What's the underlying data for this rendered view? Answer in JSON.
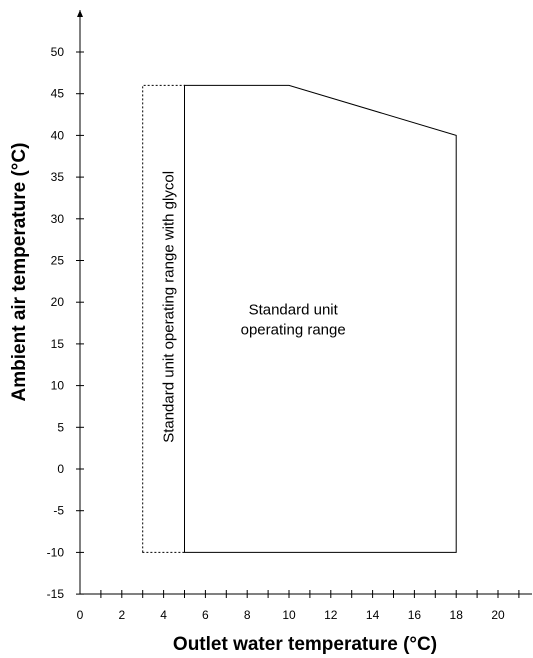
{
  "chart_data": {
    "type": "area",
    "title": "",
    "xlabel": "Outlet water temperature (°C)",
    "ylabel": "Ambient air temperature (°C)",
    "xlim": [
      0,
      21
    ],
    "ylim": [
      -15,
      55
    ],
    "x_ticks": [
      "0",
      "2",
      "4",
      "6",
      "8",
      "10",
      "12",
      "14",
      "16",
      "18",
      "20"
    ],
    "x_tick_values": [
      0,
      2,
      4,
      6,
      8,
      10,
      12,
      14,
      16,
      18,
      20
    ],
    "x_minor_step": 1,
    "y_ticks": [
      "-15",
      "-10",
      "-5",
      "0",
      "5",
      "10",
      "15",
      "20",
      "25",
      "30",
      "35",
      "40",
      "45",
      "50"
    ],
    "y_tick_values": [
      -15,
      -10,
      -5,
      0,
      5,
      10,
      15,
      20,
      25,
      30,
      35,
      40,
      45,
      50
    ],
    "grid": false,
    "regions": [
      {
        "label_lines": [
          "Standard unit",
          "operating range"
        ],
        "style": "solid",
        "polygon": [
          [
            5,
            -10
          ],
          [
            5,
            46
          ],
          [
            10,
            46
          ],
          [
            18,
            40
          ],
          [
            18,
            -10
          ]
        ]
      },
      {
        "label_lines": [
          "Standard unit operating range with glycol"
        ],
        "style": "dotted",
        "label_rotation": "vertical",
        "polygon": [
          [
            3,
            -10
          ],
          [
            3,
            46
          ],
          [
            5,
            46
          ],
          [
            5,
            -10
          ]
        ]
      }
    ]
  }
}
